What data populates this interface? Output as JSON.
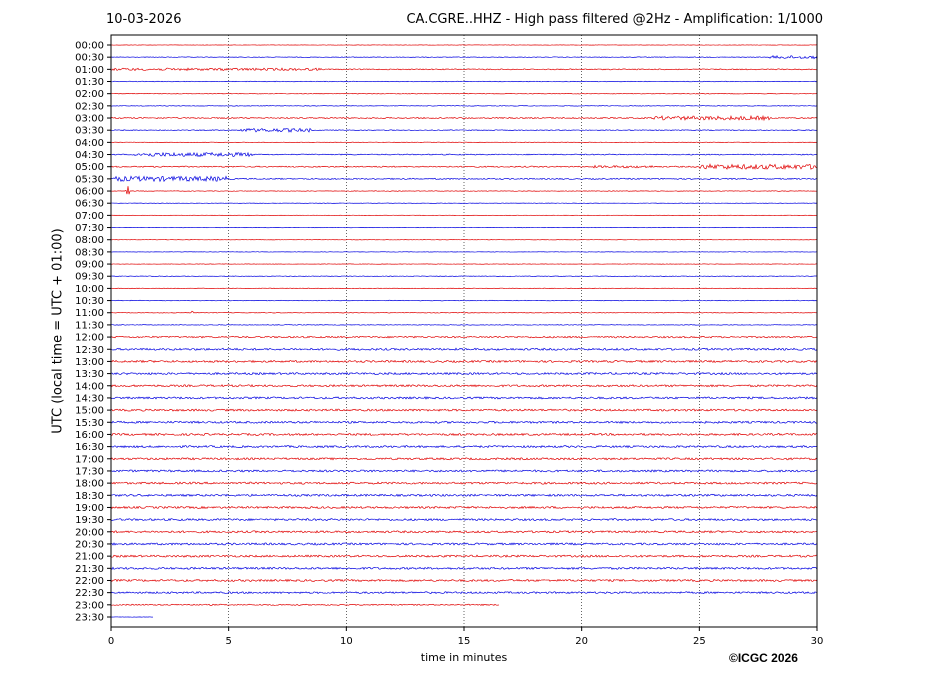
{
  "chart_data": {
    "type": "line",
    "date": "10-03-2026",
    "title": "CA.CGRE..HHZ - High pass filtered @2Hz - Amplification: 1/1000",
    "xlabel": "time in minutes",
    "ylabel": "UTC (local time = UTC + 01:00)",
    "xlim": [
      0,
      30
    ],
    "x_ticks": [
      "0",
      "5",
      "10",
      "15",
      "20",
      "25",
      "30"
    ],
    "grid": "vertical dotted at each 5 minutes",
    "colors": {
      "odd_traces": "#e00000",
      "even_traces": "#0000e0"
    },
    "rows": [
      {
        "label": "00:00",
        "noise": 0.2,
        "color": "#e00000"
      },
      {
        "label": "00:30",
        "noise": 0.3,
        "color": "#0000e0"
      },
      {
        "label": "01:00",
        "noise": 0.5,
        "color": "#e00000"
      },
      {
        "label": "01:30",
        "noise": 0.3,
        "color": "#0000e0"
      },
      {
        "label": "02:00",
        "noise": 0.3,
        "color": "#e00000"
      },
      {
        "label": "02:30",
        "noise": 0.3,
        "color": "#0000e0"
      },
      {
        "label": "03:00",
        "noise": 0.6,
        "color": "#e00000"
      },
      {
        "label": "03:30",
        "noise": 0.4,
        "color": "#0000e0"
      },
      {
        "label": "04:00",
        "noise": 0.3,
        "color": "#e00000"
      },
      {
        "label": "04:30",
        "noise": 0.5,
        "color": "#0000e0"
      },
      {
        "label": "05:00",
        "noise": 0.6,
        "color": "#e00000"
      },
      {
        "label": "05:30",
        "noise": 0.6,
        "color": "#0000e0"
      },
      {
        "label": "06:00",
        "noise": 0.3,
        "color": "#e00000"
      },
      {
        "label": "06:30",
        "noise": 0.2,
        "color": "#0000e0"
      },
      {
        "label": "07:00",
        "noise": 0.2,
        "color": "#e00000"
      },
      {
        "label": "07:30",
        "noise": 0.2,
        "color": "#0000e0"
      },
      {
        "label": "08:00",
        "noise": 0.2,
        "color": "#e00000"
      },
      {
        "label": "08:30",
        "noise": 0.2,
        "color": "#0000e0"
      },
      {
        "label": "09:00",
        "noise": 0.2,
        "color": "#e00000"
      },
      {
        "label": "09:30",
        "noise": 0.3,
        "color": "#0000e0"
      },
      {
        "label": "10:00",
        "noise": 0.3,
        "color": "#e00000"
      },
      {
        "label": "10:30",
        "noise": 0.3,
        "color": "#0000e0"
      },
      {
        "label": "11:00",
        "noise": 0.3,
        "color": "#e00000"
      },
      {
        "label": "11:30",
        "noise": 0.3,
        "color": "#0000e0"
      },
      {
        "label": "12:00",
        "noise": 0.8,
        "color": "#e00000"
      },
      {
        "label": "12:30",
        "noise": 1.0,
        "color": "#0000e0"
      },
      {
        "label": "13:00",
        "noise": 1.0,
        "color": "#e00000"
      },
      {
        "label": "13:30",
        "noise": 1.0,
        "color": "#0000e0"
      },
      {
        "label": "14:00",
        "noise": 1.0,
        "color": "#e00000"
      },
      {
        "label": "14:30",
        "noise": 1.0,
        "color": "#0000e0"
      },
      {
        "label": "15:00",
        "noise": 1.0,
        "color": "#e00000"
      },
      {
        "label": "15:30",
        "noise": 1.0,
        "color": "#0000e0"
      },
      {
        "label": "16:00",
        "noise": 1.0,
        "color": "#e00000"
      },
      {
        "label": "16:30",
        "noise": 1.0,
        "color": "#0000e0"
      },
      {
        "label": "17:00",
        "noise": 1.0,
        "color": "#e00000"
      },
      {
        "label": "17:30",
        "noise": 1.0,
        "color": "#0000e0"
      },
      {
        "label": "18:00",
        "noise": 1.0,
        "color": "#e00000"
      },
      {
        "label": "18:30",
        "noise": 1.0,
        "color": "#0000e0"
      },
      {
        "label": "19:00",
        "noise": 1.0,
        "color": "#e00000"
      },
      {
        "label": "19:30",
        "noise": 1.0,
        "color": "#0000e0"
      },
      {
        "label": "20:00",
        "noise": 1.0,
        "color": "#e00000"
      },
      {
        "label": "20:30",
        "noise": 1.0,
        "color": "#0000e0"
      },
      {
        "label": "21:00",
        "noise": 1.0,
        "color": "#e00000"
      },
      {
        "label": "21:30",
        "noise": 1.0,
        "color": "#0000e0"
      },
      {
        "label": "22:00",
        "noise": 1.0,
        "color": "#e00000"
      },
      {
        "label": "22:30",
        "noise": 0.9,
        "color": "#0000e0"
      },
      {
        "label": "23:00",
        "noise": 0.6,
        "color": "#e00000",
        "end_minute": 16.5
      },
      {
        "label": "23:30",
        "noise": 0.2,
        "color": "#0000e0",
        "end_minute": 1.8
      }
    ],
    "events": [
      {
        "row": 1,
        "start": 28.0,
        "end": 30.0,
        "amp": 1.5
      },
      {
        "row": 2,
        "start": 0.0,
        "end": 9.0,
        "amp": 1.2
      },
      {
        "row": 6,
        "start": 23.0,
        "end": 28.0,
        "amp": 2.0
      },
      {
        "row": 7,
        "start": 5.5,
        "end": 8.5,
        "amp": 1.8
      },
      {
        "row": 9,
        "start": 1.0,
        "end": 6.0,
        "amp": 2.0
      },
      {
        "row": 10,
        "start": 20.5,
        "end": 23.0,
        "amp": 1.2
      },
      {
        "row": 10,
        "start": 25.0,
        "end": 30.0,
        "amp": 2.5
      },
      {
        "row": 11,
        "start": 0.0,
        "end": 5.0,
        "amp": 2.5
      },
      {
        "row": 12,
        "start": 0.6,
        "end": 0.8,
        "amp": 5.0
      },
      {
        "row": 22,
        "start": 3.4,
        "end": 3.6,
        "amp": 3.0
      }
    ]
  },
  "copyright": "©ICGC 2026"
}
